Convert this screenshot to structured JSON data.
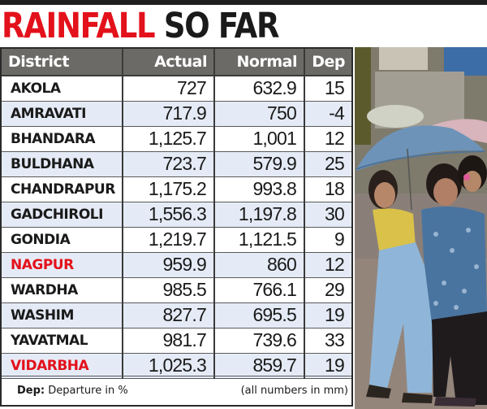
{
  "headline": {
    "part1": "RAINFALL",
    "part2": "SO FAR"
  },
  "table": {
    "headers": [
      "District",
      "Actual",
      "Normal",
      "Dep"
    ],
    "rows": [
      {
        "district": "AKOLA",
        "actual": "727",
        "normal": "632.9",
        "dep": "15",
        "highlight": false
      },
      {
        "district": "AMRAVATI",
        "actual": "717.9",
        "normal": "750",
        "dep": "-4",
        "highlight": false
      },
      {
        "district": "BHANDARA",
        "actual": "1,125.7",
        "normal": "1,001",
        "dep": "12",
        "highlight": false
      },
      {
        "district": "BULDHANA",
        "actual": "723.7",
        "normal": "579.9",
        "dep": "25",
        "highlight": false
      },
      {
        "district": "CHANDRAPUR",
        "actual": "1,175.2",
        "normal": "993.8",
        "dep": "18",
        "highlight": false
      },
      {
        "district": "GADCHIROLI",
        "actual": "1,556.3",
        "normal": "1,197.8",
        "dep": "30",
        "highlight": false
      },
      {
        "district": "GONDIA",
        "actual": "1,219.7",
        "normal": "1,121.5",
        "dep": "9",
        "highlight": false
      },
      {
        "district": "NAGPUR",
        "actual": "959.9",
        "normal": "860",
        "dep": "12",
        "highlight": true
      },
      {
        "district": "WARDHA",
        "actual": "985.5",
        "normal": "766.1",
        "dep": "29",
        "highlight": false
      },
      {
        "district": "WASHIM",
        "actual": "827.7",
        "normal": "695.5",
        "dep": "19",
        "highlight": false
      },
      {
        "district": "YAVATMAL",
        "actual": "981.7",
        "normal": "739.6",
        "dep": "33",
        "highlight": false
      },
      {
        "district": "VIDARBHA",
        "actual": "1,025.3",
        "normal": "859.7",
        "dep": "19",
        "highlight": true
      }
    ]
  },
  "footer": {
    "dep_label": "Dep:",
    "dep_text": " Departure in %",
    "units_note": "(all numbers in mm)"
  },
  "photo": {
    "subject": "two women walking under a blue umbrella in the rain"
  },
  "colors": {
    "headline_red": "#e3111b",
    "header_bg": "#6b6a67",
    "alt_row_bg": "#e5ebf6",
    "highlight_text": "#e3111b"
  }
}
